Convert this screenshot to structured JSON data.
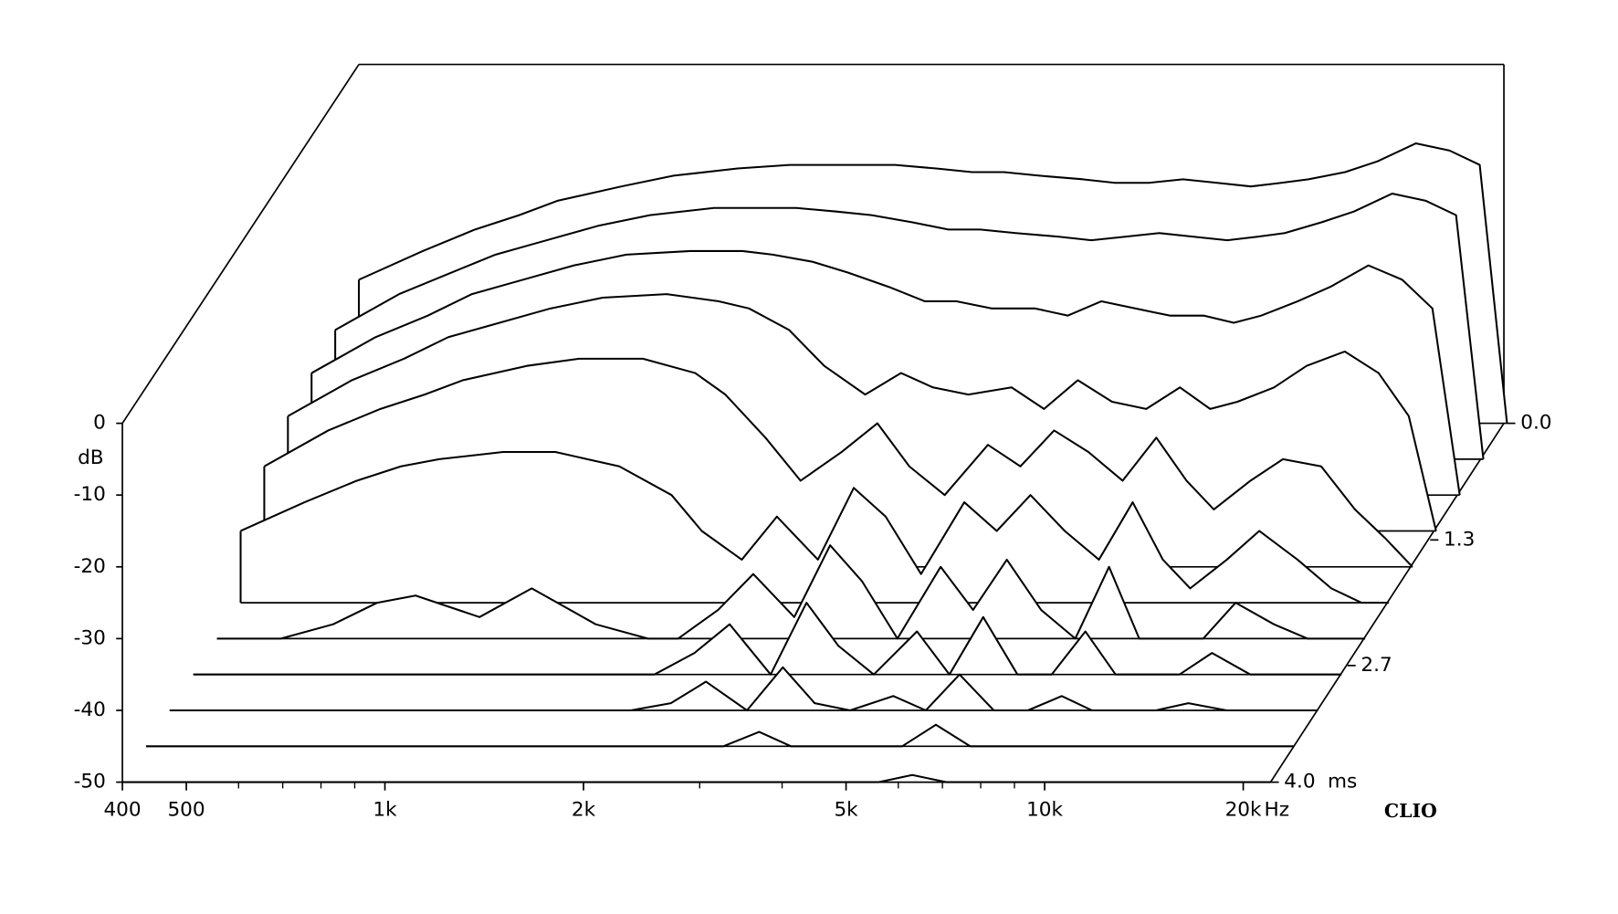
{
  "chart_data": {
    "type": "waterfall",
    "x_unit": "Hz",
    "y_label": "dB",
    "z_unit": "ms",
    "brand": "CLIO",
    "log_x": true,
    "line_color": "#000000",
    "xlim": [
      400,
      22000
    ],
    "xticks": [
      400,
      500,
      {
        "value": 1000,
        "label": "1k"
      },
      {
        "value": 2000,
        "label": "2k"
      },
      {
        "value": 5000,
        "label": "5k"
      },
      {
        "value": 10000,
        "label": "10k"
      },
      {
        "value": 20000,
        "label": "20k"
      }
    ],
    "xminor_ticks": [
      600,
      700,
      800,
      900,
      3000,
      4000,
      6000,
      7000,
      8000,
      9000
    ],
    "ylim": [
      -50,
      0
    ],
    "yticks": [
      0,
      -10,
      -20,
      -30,
      -40,
      -50
    ],
    "zlim": [
      0,
      4
    ],
    "zticks": [
      {
        "value": 0,
        "label": "0.0"
      },
      {
        "value": 1.3,
        "label": "1.3"
      },
      {
        "value": 2.7,
        "label": "2.7"
      },
      {
        "value": 4,
        "label": "4.0"
      }
    ],
    "x": [
      400,
      500,
      600,
      700,
      800,
      1000,
      1200,
      1500,
      1800,
      2000,
      2300,
      2600,
      3000,
      3400,
      3800,
      4300,
      5000,
      5600,
      6300,
      7100,
      8000,
      9000,
      10000,
      11000,
      12500,
      14000,
      16000,
      18000,
      20000,
      22000
    ],
    "z": [
      0,
      0.4,
      0.8,
      1.2,
      1.6,
      2.0,
      2.4,
      2.8,
      3.2,
      3.6,
      4.0
    ],
    "series": [
      {
        "values": [
          -30,
          -26,
          -23,
          -21,
          -19,
          -17,
          -15.5,
          -14.5,
          -14,
          -14,
          -14,
          -14,
          -14.5,
          -15,
          -15,
          -15.5,
          -16,
          -16.5,
          -16.5,
          -16,
          -16.5,
          -17,
          -16.5,
          -16,
          -15,
          -13.5,
          -11,
          -12,
          -14,
          -50
        ]
      },
      {
        "values": [
          -32,
          -27,
          -24,
          -21.5,
          -20,
          -17.5,
          -16,
          -15,
          -15,
          -15,
          -15.5,
          -16,
          -17,
          -18,
          -18,
          -18.5,
          -19,
          -19.5,
          -19,
          -18.5,
          -19,
          -19.5,
          -19,
          -18.5,
          -17,
          -15.5,
          -13,
          -14,
          -16,
          -50
        ]
      },
      {
        "values": [
          -33,
          -28,
          -25,
          -22,
          -20.5,
          -18,
          -16.5,
          -16,
          -16,
          -16.5,
          -17.5,
          -19,
          -21,
          -23,
          -23,
          -24,
          -24,
          -25,
          -23,
          -24,
          -25,
          -25,
          -26,
          -25,
          -23,
          -21,
          -18,
          -20,
          -24,
          -50
        ]
      },
      {
        "values": [
          -34,
          -29,
          -26,
          -23,
          -21.5,
          -19,
          -17.5,
          -17,
          -18,
          -19,
          -22,
          -27,
          -31,
          -28,
          -30,
          -31,
          -30,
          -33,
          -29,
          -32,
          -33,
          -30,
          -33,
          -32,
          -30,
          -27,
          -25,
          -28,
          -34,
          -50
        ]
      },
      {
        "values": [
          -36,
          -31,
          -28,
          -26,
          -24,
          -22,
          -21,
          -21,
          -23,
          -26,
          -32,
          -38,
          -34,
          -30,
          -36,
          -40,
          -33,
          -36,
          -31,
          -34,
          -38,
          -32,
          -38,
          -42,
          -38,
          -35,
          -36,
          -42,
          -46,
          -50
        ]
      },
      {
        "values": [
          -40,
          -36,
          -33,
          -31,
          -30,
          -29,
          -29,
          -31,
          -35,
          -40,
          -44,
          -38,
          -44,
          -34,
          -38,
          -46,
          -36,
          -40,
          -35,
          -40,
          -44,
          -36,
          -44,
          -48,
          -44,
          -40,
          -44,
          -48,
          -50,
          -50
        ]
      },
      {
        "values": [
          -50,
          -50,
          -48,
          -45,
          -44,
          -47,
          -43,
          -48,
          -50,
          -50,
          -46,
          -41,
          -47,
          -37,
          -42,
          -50,
          -40,
          -46,
          -39,
          -46,
          -50,
          -40,
          -50,
          -50,
          -50,
          -45,
          -48,
          -50,
          -50,
          -50
        ]
      },
      {
        "values": [
          -50,
          -50,
          -50,
          -50,
          -50,
          -50,
          -50,
          -50,
          -50,
          -50,
          -47,
          -43,
          -50,
          -40,
          -46,
          -50,
          -44,
          -50,
          -42,
          -50,
          -50,
          -44,
          -50,
          -50,
          -50,
          -47,
          -50,
          -50,
          -50,
          -50
        ]
      },
      {
        "values": [
          -50,
          -50,
          -50,
          -50,
          -50,
          -50,
          -50,
          -50,
          -50,
          -50,
          -49,
          -46,
          -50,
          -44,
          -49,
          -50,
          -48,
          -50,
          -45,
          -50,
          -50,
          -48,
          -50,
          -50,
          -50,
          -49,
          -50,
          -50,
          -50,
          -50
        ]
      },
      {
        "values": [
          -50,
          -50,
          -50,
          -50,
          -50,
          -50,
          -50,
          -50,
          -50,
          -50,
          -50,
          -50,
          -50,
          -48,
          -50,
          -50,
          -50,
          -50,
          -47,
          -50,
          -50,
          -50,
          -50,
          -50,
          -50,
          -50,
          -50,
          -50,
          -50,
          -50
        ]
      },
      {
        "values": [
          -50,
          -50,
          -50,
          -50,
          -50,
          -50,
          -50,
          -50,
          -50,
          -50,
          -50,
          -50,
          -50,
          -50,
          -50,
          -50,
          -50,
          -50,
          -49,
          -50,
          -50,
          -50,
          -50,
          -50,
          -50,
          -50,
          -50,
          -50,
          -50,
          -50
        ]
      }
    ]
  }
}
